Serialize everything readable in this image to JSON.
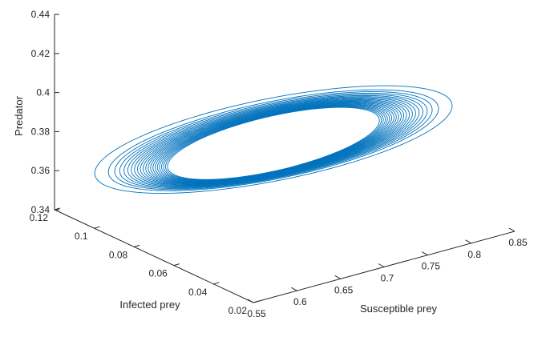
{
  "chart_data": {
    "type": "line",
    "subtype": "3d-parametric-trajectory",
    "title": "",
    "xlabel": "Susceptible prey",
    "ylabel": "Infected prey",
    "zlabel": "Predator",
    "xlim": [
      0.55,
      0.85
    ],
    "ylim": [
      0.02,
      0.12
    ],
    "zlim": [
      0.34,
      0.44
    ],
    "xticks": [
      "0.55",
      "0.6",
      "0.65",
      "0.7",
      "0.75",
      "0.8",
      "0.85"
    ],
    "yticks": [
      "0.02",
      "0.04",
      "0.06",
      "0.08",
      "0.1",
      "0.12"
    ],
    "zticks": [
      "0.34",
      "0.36",
      "0.38",
      "0.4",
      "0.42",
      "0.44"
    ],
    "grid": false,
    "legend": "none",
    "line_color": "#0072BD",
    "series": [
      {
        "description_values": {
          "outer_loop": {
            "S_min": 0.575,
            "S_max": 0.845,
            "I_min": 0.048,
            "I_max": 0.112,
            "P_min": 0.353,
            "P_max": 0.398
          },
          "inner_loop": {
            "S_min": 0.63,
            "S_max": 0.79,
            "I_min": 0.061,
            "I_max": 0.099,
            "P_min": 0.358,
            "P_max": 0.389
          },
          "loops": 22
        }
      }
    ]
  }
}
